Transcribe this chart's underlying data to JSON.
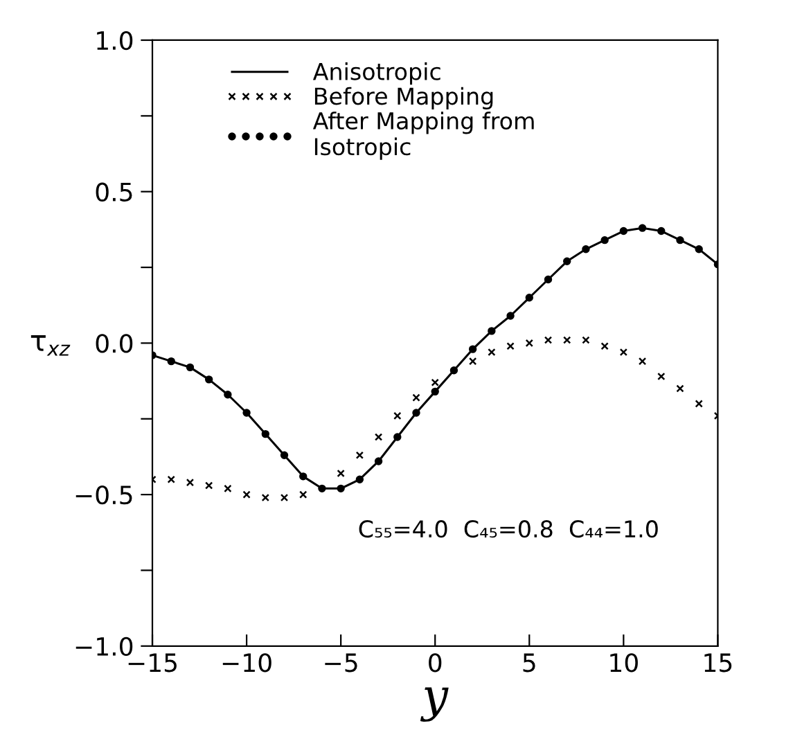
{
  "chart_data": {
    "type": "line",
    "xlabel": "y",
    "ylabel": "τ$_{xz}$",
    "x": [
      -15,
      -14,
      -13,
      -12,
      -11,
      -10,
      -9,
      -8,
      -7,
      -6,
      -5,
      -4,
      -3,
      -2,
      -1,
      0,
      1,
      2,
      3,
      4,
      5,
      6,
      7,
      8,
      9,
      10,
      11,
      12,
      13,
      14,
      15
    ],
    "series": [
      {
        "name": "Anisotropic",
        "marker": "none",
        "line_style": "solid",
        "color": "#000000",
        "values": [
          -0.04,
          -0.06,
          -0.08,
          -0.12,
          -0.17,
          -0.23,
          -0.3,
          -0.37,
          -0.44,
          -0.48,
          -0.48,
          -0.45,
          -0.39,
          -0.31,
          -0.23,
          -0.16,
          -0.09,
          -0.02,
          0.04,
          0.09,
          0.15,
          0.21,
          0.27,
          0.31,
          0.34,
          0.37,
          0.38,
          0.37,
          0.34,
          0.31,
          0.26
        ]
      },
      {
        "name": "Before Mapping",
        "type": "scatter",
        "marker": "cross",
        "color": "#000000",
        "values": [
          -0.45,
          -0.45,
          -0.46,
          -0.47,
          -0.48,
          -0.5,
          -0.51,
          -0.51,
          -0.5,
          null,
          -0.43,
          -0.37,
          -0.31,
          -0.24,
          -0.18,
          -0.13,
          null,
          -0.06,
          -0.03,
          -0.01,
          0.0,
          0.01,
          0.01,
          0.01,
          -0.01,
          -0.03,
          -0.06,
          -0.11,
          -0.15,
          -0.2,
          -0.24
        ]
      },
      {
        "name": "After Mapping from\nIsotropic",
        "type": "scatter",
        "marker": "circle",
        "color": "#000000",
        "values": [
          -0.04,
          -0.06,
          -0.08,
          -0.12,
          -0.17,
          -0.23,
          -0.3,
          -0.37,
          -0.44,
          -0.48,
          -0.48,
          -0.45,
          -0.39,
          -0.31,
          -0.23,
          -0.16,
          -0.09,
          -0.02,
          0.04,
          0.09,
          0.15,
          0.21,
          0.27,
          0.31,
          0.34,
          0.37,
          0.38,
          0.37,
          0.34,
          0.31,
          0.26
        ]
      }
    ],
    "xlim": [
      -15,
      15
    ],
    "xticks": [
      -15,
      -10,
      -5,
      0,
      5,
      10,
      15
    ],
    "ylim": [
      -1.0,
      1.0
    ],
    "yticks": [
      {
        "value": -1.0,
        "label": "−1.0"
      },
      {
        "value": -0.75,
        "label": null
      },
      {
        "value": -0.5,
        "label": "−0.5"
      },
      {
        "value": -0.25,
        "label": null
      },
      {
        "value": 0.0,
        "label": "0.0"
      },
      {
        "value": 0.25,
        "label": null
      },
      {
        "value": 0.5,
        "label": "0.5"
      },
      {
        "value": 0.75,
        "label": null
      },
      {
        "value": 1.0,
        "label": "1.0"
      }
    ],
    "grid": false,
    "legend": "top left",
    "annotations": [
      "C₅₅=4.0  C₄₅=0.8  C₄₄=1.0"
    ]
  }
}
